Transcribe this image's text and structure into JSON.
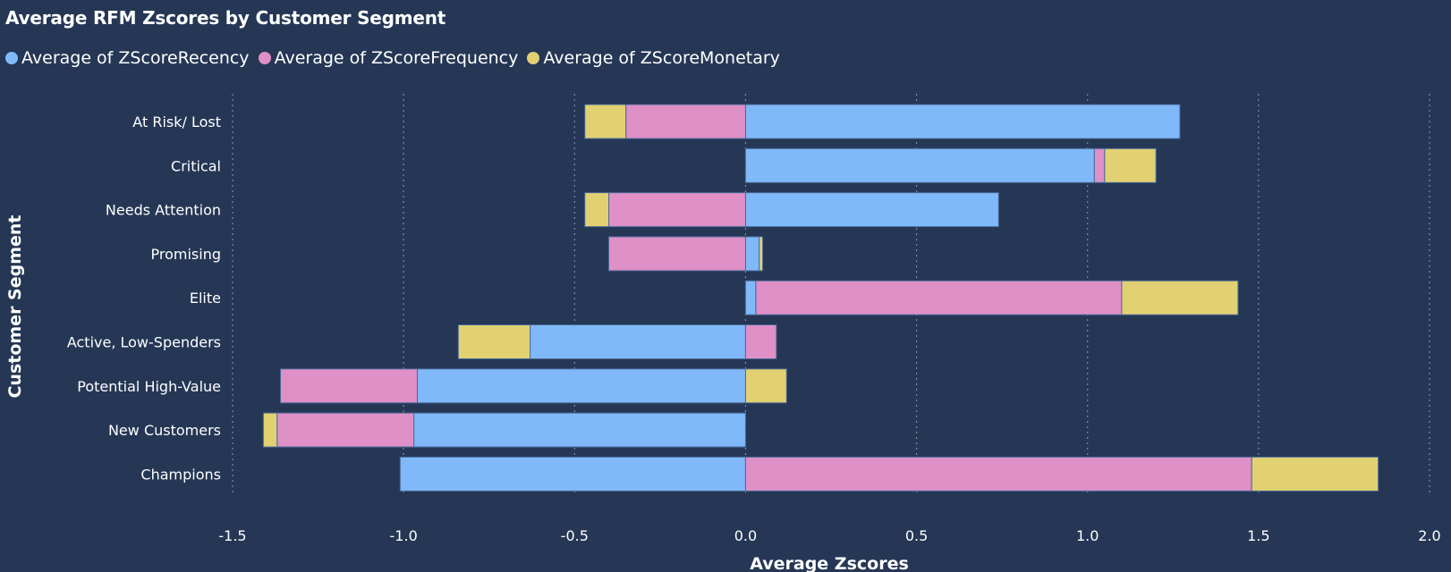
{
  "chart_data": {
    "type": "bar",
    "orientation": "horizontal",
    "stacked": true,
    "title": "Average RFM Zscores by Customer Segment",
    "xlabel": "Average Zscores",
    "ylabel": "Customer Segment",
    "xlim": [
      -1.5,
      2.0
    ],
    "xticks": [
      -1.5,
      -1.0,
      -0.5,
      0.0,
      0.5,
      1.0,
      1.5,
      2.0
    ],
    "xtick_labels": [
      "-1.5",
      "-1.0",
      "-0.5",
      "0.0",
      "0.5",
      "1.0",
      "1.5",
      "2.0"
    ],
    "grid": "vertical dotted",
    "legend_position": "top-left",
    "categories": [
      "At Risk/ Lost",
      "Critical",
      "Needs Attention",
      "Promising",
      "Elite",
      "Active, Low-Spenders",
      "Potential High-Value",
      "New Customers",
      "Champions"
    ],
    "series": [
      {
        "name": "Average of ZScoreRecency",
        "color": "#80b9fa",
        "values": [
          1.27,
          1.02,
          0.74,
          0.04,
          0.03,
          -0.63,
          -0.96,
          -0.97,
          -1.01
        ]
      },
      {
        "name": "Average of ZScoreFrequency",
        "color": "#de90c7",
        "values": [
          -0.35,
          0.03,
          -0.4,
          -0.4,
          1.07,
          0.09,
          -0.4,
          -0.4,
          1.48
        ]
      },
      {
        "name": "Average of ZScoreMonetary",
        "color": "#e2d173",
        "values": [
          -0.12,
          0.15,
          -0.07,
          0.01,
          0.34,
          -0.21,
          0.12,
          -0.04,
          0.37
        ]
      }
    ]
  }
}
